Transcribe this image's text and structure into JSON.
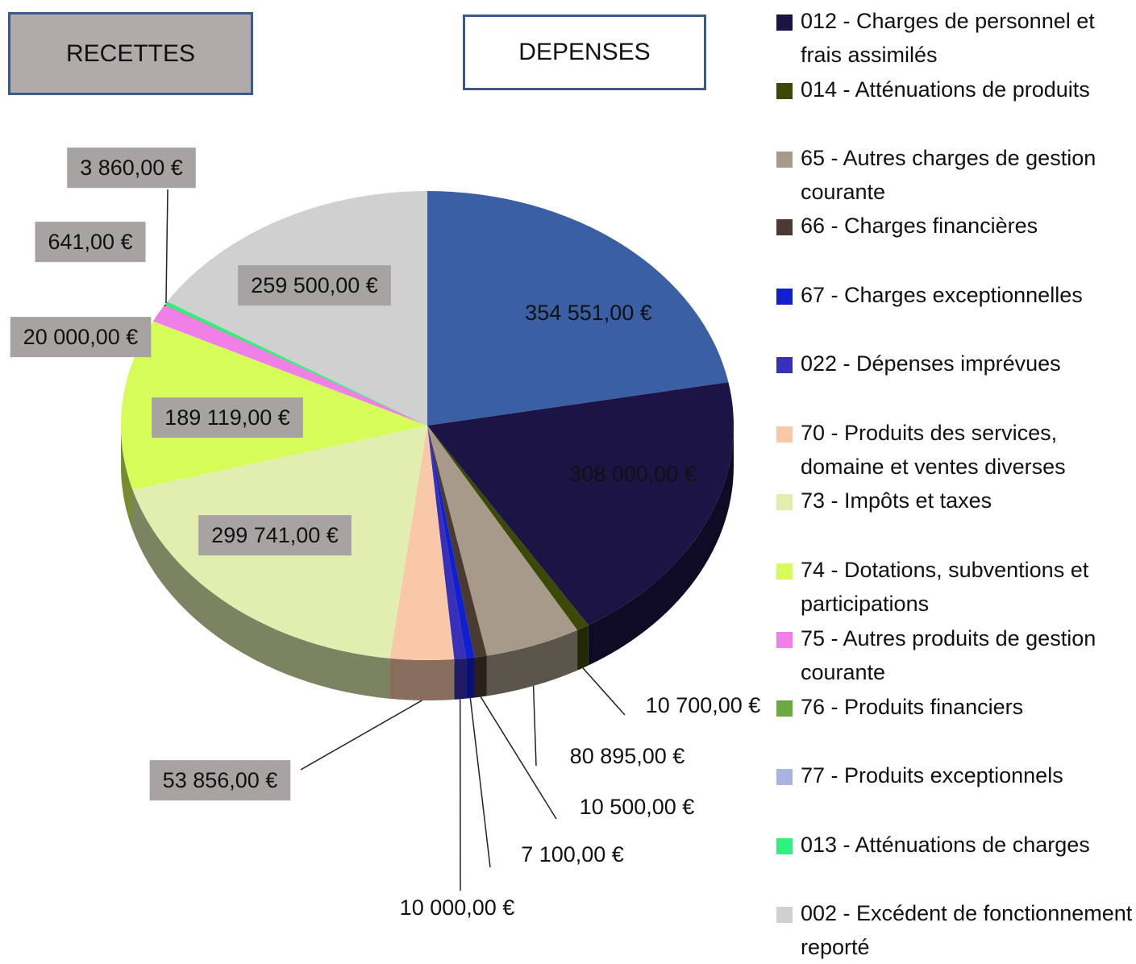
{
  "header": {
    "recettes": "RECETTES",
    "depenses": "DEPENSES"
  },
  "chart_data": {
    "type": "pie",
    "categories": [
      null,
      "012 - Charges de personnel et frais assimilés",
      "014 - Atténuations de produits",
      "65 - Autres charges de gestion courante",
      "66 - Charges financières",
      "67 - Charges exceptionnelles",
      "022 - Dépenses imprévues",
      "70 - Produits des services, domaine et ventes diverses",
      "73 - Impôts et taxes",
      "74 - Dotations, subventions et participations",
      "75 - Autres produits de gestion courante",
      "76 - Produits financiers",
      "77 - Produits exceptionnels",
      "013 - Atténuations de charges",
      "002 - Excédent de fonctionnement reporté"
    ],
    "values": [
      354551,
      308000,
      10700,
      80895,
      10500,
      7100,
      10000,
      53856,
      299741,
      189119,
      20000,
      641,
      null,
      3860,
      259500
    ],
    "value_labels": [
      "354 551,00 €",
      "308 000,00 €",
      "10 700,00 €",
      "80 895,00 €",
      "10 500,00 €",
      "7 100,00 €",
      "10 000,00 €",
      "53 856,00 €",
      "299 741,00 €",
      "189 119,00 €",
      "20 000,00 €",
      "641,00 €",
      null,
      "3 860,00 €",
      "259 500,00 €"
    ],
    "colors": [
      "#3a5fa5",
      "#1c1444",
      "#3a4a05",
      "#a89a8a",
      "#4a3a32",
      "#1020d0",
      "#3830b8",
      "#f8c8a8",
      "#e2eeb0",
      "#d6fc5a",
      "#f080e8",
      "#6aaa40",
      "#a8b4e0",
      "#30f080",
      "#d0d0d0"
    ]
  }
}
